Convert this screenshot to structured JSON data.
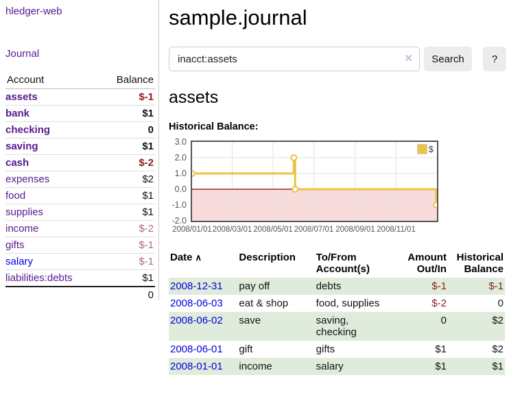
{
  "sidebar": {
    "app_title": "hledger-web",
    "journal_label": "Journal",
    "accounts_table": {
      "headers": {
        "account": "Account",
        "balance": "Balance"
      },
      "rows": [
        {
          "name": "assets",
          "balance": "$-1"
        },
        {
          "name": "bank",
          "balance": "$1"
        },
        {
          "name": "checking",
          "balance": "0"
        },
        {
          "name": "saving",
          "balance": "$1"
        },
        {
          "name": "cash",
          "balance": "$-2"
        },
        {
          "name": "expenses",
          "balance": "$2"
        },
        {
          "name": "food",
          "balance": "$1"
        },
        {
          "name": "supplies",
          "balance": "$1"
        },
        {
          "name": "income",
          "balance": "$-2"
        },
        {
          "name": "gifts",
          "balance": "$-1"
        },
        {
          "name": "salary",
          "balance": "$-1"
        },
        {
          "name": "liabilities:debts",
          "balance": "$1"
        }
      ],
      "total": "0"
    }
  },
  "main": {
    "title": "sample.journal",
    "search": {
      "query": "inacct:assets",
      "clear_icon": "✕",
      "search_label": "Search",
      "help_label": "?"
    },
    "account_heading": "assets",
    "chart_label": "Historical Balance:"
  },
  "chart_data": {
    "type": "line",
    "title": "Historical Balance:",
    "legend": "$",
    "legend_position": "top-right",
    "grid": true,
    "ylim": [
      -2,
      3
    ],
    "x_range_days": 366,
    "series": [
      {
        "name": "$",
        "color": "#edc240",
        "data": [
          [
            "2008-01-01",
            1
          ],
          [
            "2008-06-01",
            2
          ],
          [
            "2008-06-02",
            2
          ],
          [
            "2008-06-03",
            0
          ],
          [
            "2008-12-31",
            -1
          ]
        ],
        "step_points": [
          [
            0,
            1
          ],
          [
            152,
            1
          ],
          [
            152,
            2
          ],
          [
            154,
            2
          ],
          [
            154,
            0
          ],
          [
            365,
            0
          ],
          [
            365,
            -1
          ]
        ],
        "markers": [
          [
            0,
            1
          ],
          [
            152,
            2
          ],
          [
            154,
            0
          ],
          [
            365,
            -1
          ]
        ]
      }
    ],
    "y_ticks": [
      {
        "label": "3.0",
        "v": 3
      },
      {
        "label": "2.0",
        "v": 2
      },
      {
        "label": "1.0",
        "v": 1
      },
      {
        "label": "0.0",
        "v": 0
      },
      {
        "label": "-1.0",
        "v": -1
      },
      {
        "label": "-2.0",
        "v": -2
      }
    ],
    "x_ticks": [
      {
        "label": "2008/01/01",
        "d": 0
      },
      {
        "label": "2008/03/01",
        "d": 60
      },
      {
        "label": "2008/05/01",
        "d": 121
      },
      {
        "label": "2008/07/01",
        "d": 182
      },
      {
        "label": "2008/09/01",
        "d": 244
      },
      {
        "label": "2008/11/01",
        "d": 305
      }
    ],
    "zero_line_color": "#8b0000",
    "negative_region_color": "#f8dbdb",
    "gridline_color": "#e3e3e3"
  },
  "register_table": {
    "headers": {
      "date": "Date",
      "sort_icon": "∧",
      "description": "Description",
      "accounts": "To/From Account(s)",
      "amount": "Amount Out/In",
      "balance": "Historical Balance"
    },
    "rows": [
      {
        "date": "2008-12-31",
        "description": "pay off",
        "accounts": "debts",
        "amount": "$-1",
        "balance": "$-1"
      },
      {
        "date": "2008-06-03",
        "description": "eat & shop",
        "accounts": "food, supplies",
        "amount": "$-2",
        "balance": "0"
      },
      {
        "date": "2008-06-02",
        "description": "save",
        "accounts": "saving, checking",
        "amount": "0",
        "balance": "$2"
      },
      {
        "date": "2008-06-01",
        "description": "gift",
        "accounts": "gifts",
        "amount": "$1",
        "balance": "$2"
      },
      {
        "date": "2008-01-01",
        "description": "income",
        "accounts": "salary",
        "amount": "$1",
        "balance": "$1"
      }
    ]
  }
}
